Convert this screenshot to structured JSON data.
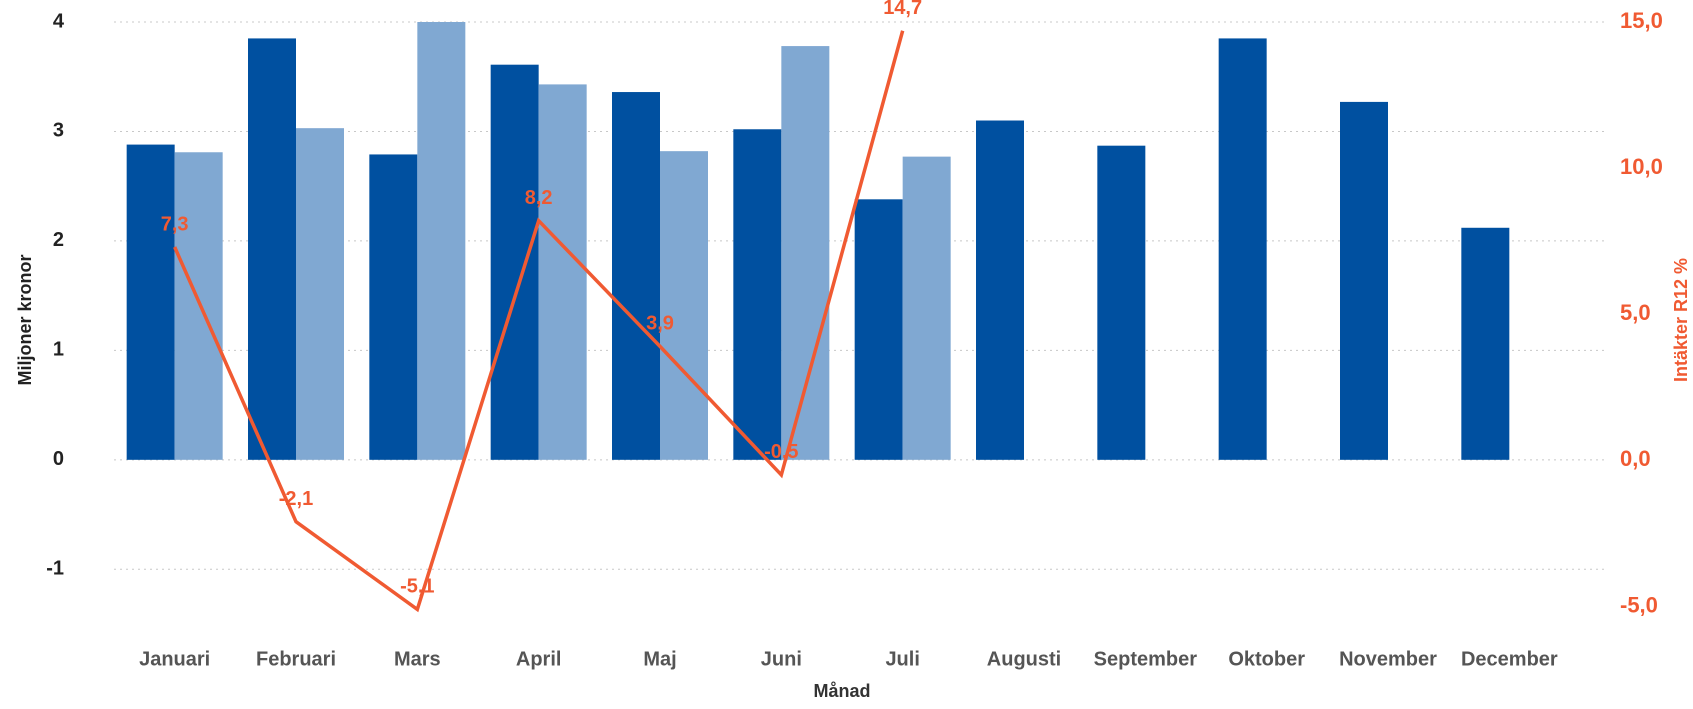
{
  "chart_data": {
    "type": "bar",
    "x_label": "Månad",
    "y_label": "Miljoner kronor",
    "y2_label": "Intäkter R12 %",
    "categories": [
      "Januari",
      "Februari",
      "Mars",
      "April",
      "Maj",
      "Juni",
      "Juli",
      "Augusti",
      "September",
      "Oktober",
      "November",
      "December"
    ],
    "series": [
      {
        "color": "#0050a0",
        "values": [
          2.88,
          3.85,
          2.79,
          3.61,
          3.36,
          3.02,
          2.38,
          3.1,
          2.87,
          3.85,
          3.27,
          2.12
        ]
      },
      {
        "color": "#80a8d2",
        "values": [
          2.81,
          3.03,
          4.0,
          3.43,
          2.82,
          3.78,
          2.77,
          null,
          null,
          null,
          null,
          null
        ]
      },
      {
        "type": "line",
        "axis": "y2",
        "color": "#f05a32",
        "values": [
          7.3,
          -2.1,
          -5.1,
          8.2,
          3.9,
          -0.5,
          14.7,
          null,
          null,
          null,
          null,
          null
        ],
        "value_labels": [
          "7,3",
          "-2,1",
          "-5,1",
          "8,2",
          "3,9",
          "-0,5",
          "14,7",
          null,
          null,
          null,
          null,
          null
        ]
      }
    ],
    "ylim": [
      -1.5,
      4
    ],
    "yticks": [
      -1,
      0,
      1,
      2,
      3,
      4
    ],
    "y2lim": [
      -5.6,
      15
    ],
    "y2ticks": [
      {
        "value": -5,
        "label": "-5,0"
      },
      {
        "value": 0,
        "label": "0,0"
      },
      {
        "value": 5,
        "label": "5,0"
      },
      {
        "value": 10,
        "label": "10,0"
      },
      {
        "value": 15,
        "label": "15,0"
      }
    ],
    "grid": true
  }
}
